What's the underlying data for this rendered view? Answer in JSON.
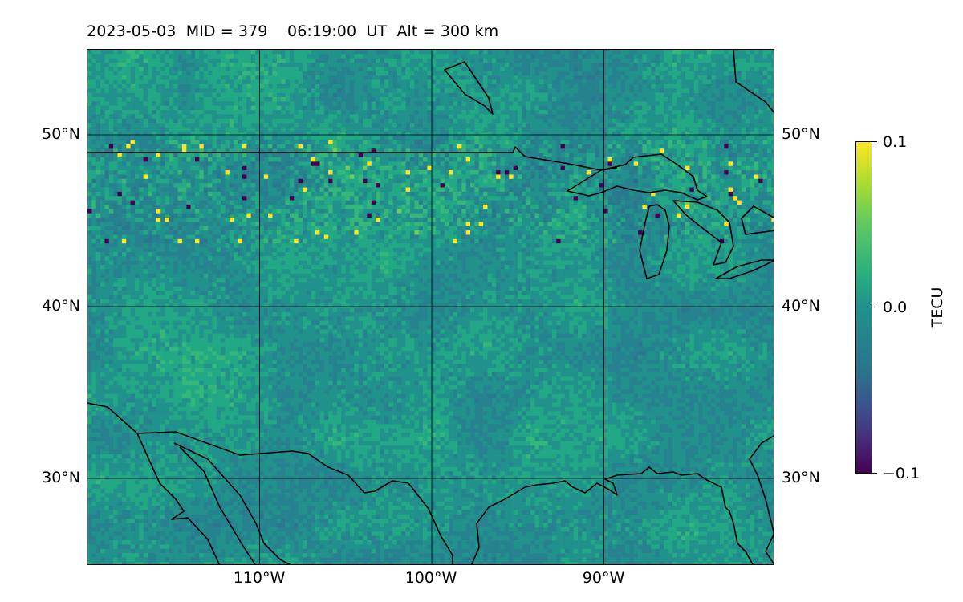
{
  "header": {
    "title": "2023-05-03  MID = 379    06:19:00  UT  Alt = 300 km"
  },
  "map": {
    "lat_labels": [
      "50°N",
      "40°N",
      "30°N"
    ],
    "lon_labels": [
      "110°W",
      "100°W",
      "90°W"
    ],
    "lon_range": [
      -120,
      -80
    ],
    "lat_range": [
      25,
      55
    ],
    "colormap": "viridis",
    "features": [
      "coastlines",
      "country-borders",
      "graticule"
    ]
  },
  "colorbar": {
    "label": "TECU",
    "ticks": [
      "0.1",
      "0.0",
      "−0.1"
    ],
    "range": [
      -0.1,
      0.1
    ]
  },
  "colors": {
    "background_field": "#2a8a87",
    "coastline": "#000000",
    "grid": "#000000"
  }
}
